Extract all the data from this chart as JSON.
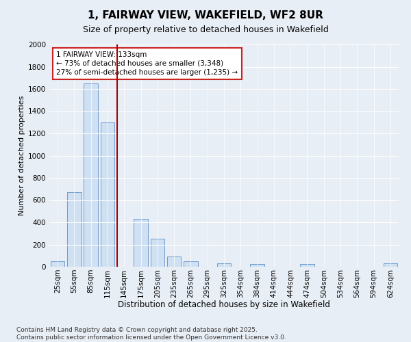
{
  "title": "1, FAIRWAY VIEW, WAKEFIELD, WF2 8UR",
  "subtitle": "Size of property relative to detached houses in Wakefield",
  "xlabel": "Distribution of detached houses by size in Wakefield",
  "ylabel": "Number of detached properties",
  "categories": [
    "25sqm",
    "55sqm",
    "85sqm",
    "115sqm",
    "145sqm",
    "175sqm",
    "205sqm",
    "235sqm",
    "265sqm",
    "295sqm",
    "325sqm",
    "354sqm",
    "384sqm",
    "414sqm",
    "444sqm",
    "474sqm",
    "504sqm",
    "534sqm",
    "564sqm",
    "594sqm",
    "624sqm"
  ],
  "values": [
    50,
    670,
    1650,
    1300,
    0,
    430,
    250,
    95,
    50,
    0,
    30,
    0,
    25,
    0,
    0,
    25,
    0,
    0,
    0,
    0,
    30
  ],
  "bar_color": "#cfe0f2",
  "bar_edge_color": "#5b8fc9",
  "vline_color": "#aa0000",
  "vline_x_index": 3.58,
  "annotation_text": "1 FAIRWAY VIEW: 133sqm\n← 73% of detached houses are smaller (3,348)\n27% of semi-detached houses are larger (1,235) →",
  "annotation_box_facecolor": "#ffffff",
  "annotation_box_edgecolor": "#cc2222",
  "ylim": [
    0,
    2000
  ],
  "yticks": [
    0,
    200,
    400,
    600,
    800,
    1000,
    1200,
    1400,
    1600,
    1800,
    2000
  ],
  "bg_color": "#e8eef5",
  "plot_bg_color": "#e8eef5",
  "footer": "Contains HM Land Registry data © Crown copyright and database right 2025.\nContains public sector information licensed under the Open Government Licence v3.0.",
  "title_fontsize": 11,
  "subtitle_fontsize": 9,
  "xlabel_fontsize": 8.5,
  "ylabel_fontsize": 8,
  "tick_fontsize": 7.5,
  "annotation_fontsize": 7.5,
  "footer_fontsize": 6.5
}
